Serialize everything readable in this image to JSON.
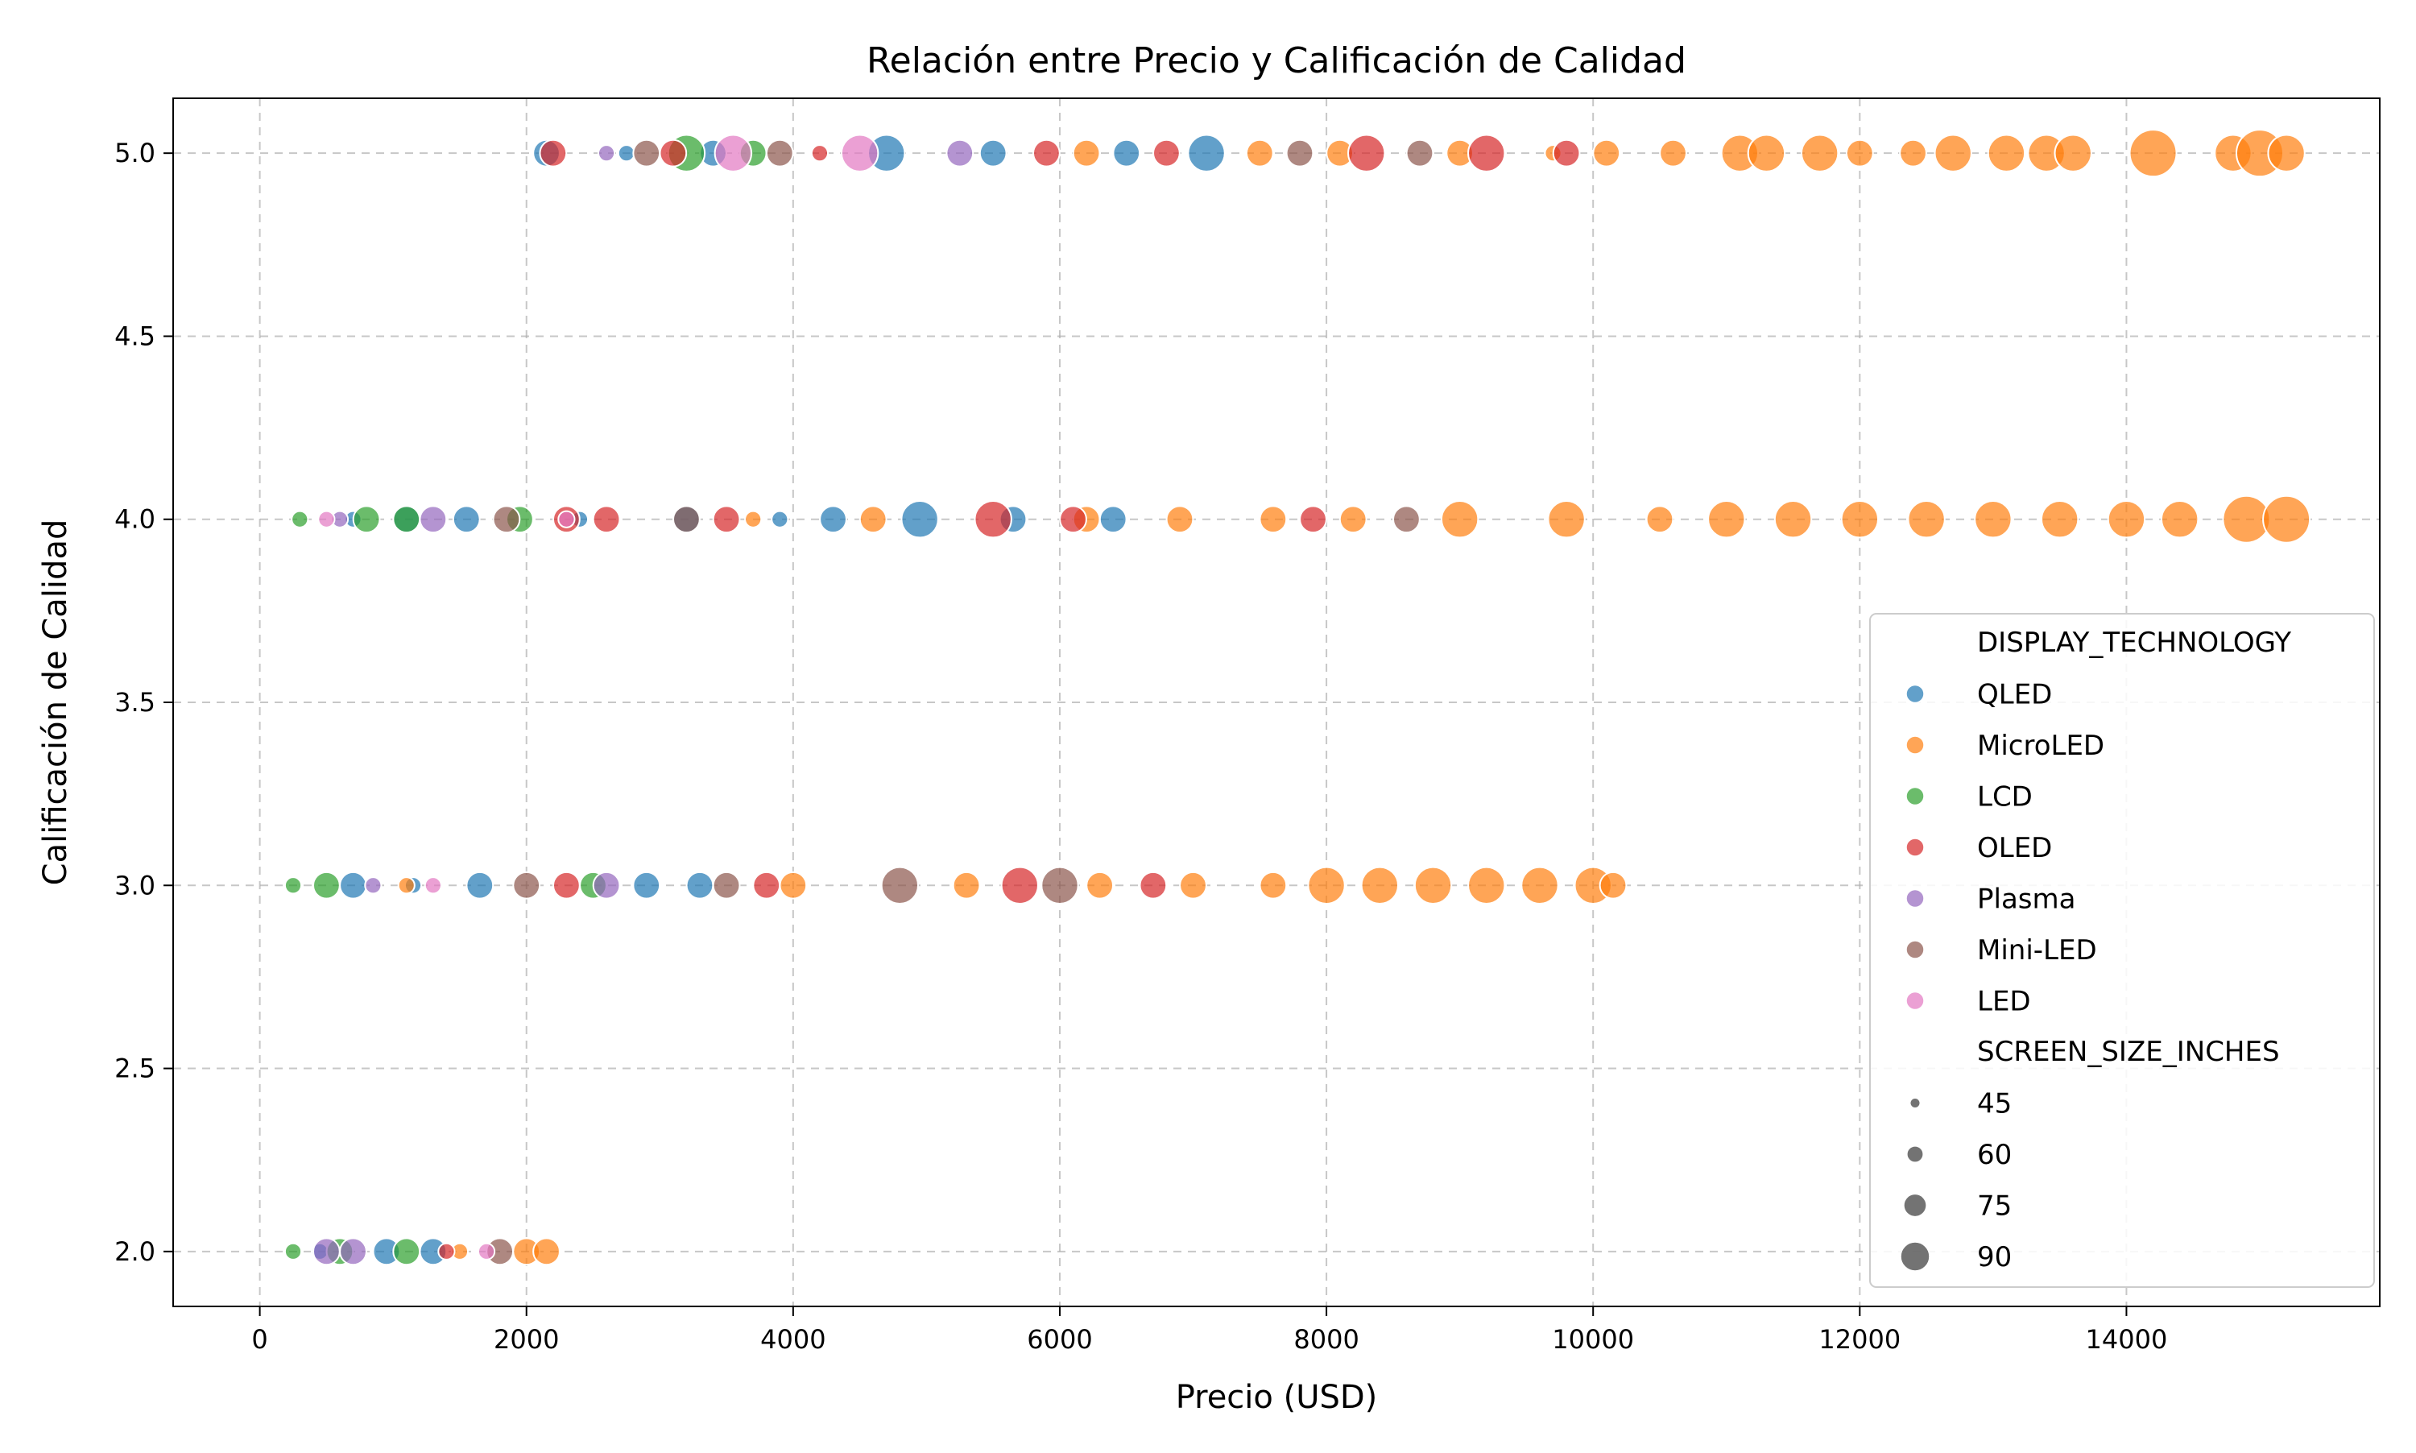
{
  "chart_data": {
    "type": "scatter",
    "title": "Relación entre Precio y Calificación de Calidad",
    "xlabel": "Precio (USD)",
    "ylabel": "Calificación de Calidad",
    "xlim": [
      -650,
      15900
    ],
    "ylim": [
      1.85,
      5.15
    ],
    "xticks": [
      0,
      2000,
      4000,
      6000,
      8000,
      10000,
      12000,
      14000
    ],
    "yticks": [
      2.0,
      2.5,
      3.0,
      3.5,
      4.0,
      4.5,
      5.0
    ],
    "xtick_labels": [
      "0",
      "2000",
      "4000",
      "6000",
      "8000",
      "10000",
      "12000",
      "14000"
    ],
    "ytick_labels": [
      "2.0",
      "2.5",
      "3.0",
      "3.5",
      "4.0",
      "4.5",
      "5.0"
    ],
    "grid": true,
    "legend_position": "right",
    "hue_title": "DISPLAY_TECHNOLOGY",
    "size_title": "SCREEN_SIZE_INCHES",
    "size_legend": [
      45,
      60,
      75,
      90
    ],
    "size_legend_labels": [
      "45",
      "60",
      "75",
      "90"
    ],
    "series": [
      {
        "name": "QLED",
        "color": "#1f77b4",
        "points": [
          {
            "x": 2150,
            "y": 5.0,
            "s": 60
          },
          {
            "x": 2750,
            "y": 5.0,
            "s": 45
          },
          {
            "x": 3400,
            "y": 5.0,
            "s": 60
          },
          {
            "x": 4700,
            "y": 5.0,
            "s": 75
          },
          {
            "x": 5500,
            "y": 5.0,
            "s": 60
          },
          {
            "x": 6500,
            "y": 5.0,
            "s": 60
          },
          {
            "x": 7100,
            "y": 5.0,
            "s": 75
          },
          {
            "x": 700,
            "y": 4.0,
            "s": 45
          },
          {
            "x": 1100,
            "y": 4.0,
            "s": 60
          },
          {
            "x": 1550,
            "y": 4.0,
            "s": 60
          },
          {
            "x": 2400,
            "y": 4.0,
            "s": 45
          },
          {
            "x": 3200,
            "y": 4.0,
            "s": 60
          },
          {
            "x": 3900,
            "y": 4.0,
            "s": 45
          },
          {
            "x": 4300,
            "y": 4.0,
            "s": 60
          },
          {
            "x": 4950,
            "y": 4.0,
            "s": 75
          },
          {
            "x": 5650,
            "y": 4.0,
            "s": 60
          },
          {
            "x": 6400,
            "y": 4.0,
            "s": 60
          },
          {
            "x": 700,
            "y": 3.0,
            "s": 60
          },
          {
            "x": 1150,
            "y": 3.0,
            "s": 45
          },
          {
            "x": 1650,
            "y": 3.0,
            "s": 60
          },
          {
            "x": 2900,
            "y": 3.0,
            "s": 60
          },
          {
            "x": 3300,
            "y": 3.0,
            "s": 60
          },
          {
            "x": 450,
            "y": 2.0,
            "s": 45
          },
          {
            "x": 950,
            "y": 2.0,
            "s": 60
          },
          {
            "x": 1300,
            "y": 2.0,
            "s": 60
          }
        ]
      },
      {
        "name": "MicroLED",
        "color": "#ff7f0e",
        "points": [
          {
            "x": 6200,
            "y": 5.0,
            "s": 60
          },
          {
            "x": 7500,
            "y": 5.0,
            "s": 60
          },
          {
            "x": 8100,
            "y": 5.0,
            "s": 60
          },
          {
            "x": 9000,
            "y": 5.0,
            "s": 60
          },
          {
            "x": 9700,
            "y": 5.0,
            "s": 45
          },
          {
            "x": 10100,
            "y": 5.0,
            "s": 60
          },
          {
            "x": 10600,
            "y": 5.0,
            "s": 60
          },
          {
            "x": 11100,
            "y": 5.0,
            "s": 75
          },
          {
            "x": 11300,
            "y": 5.0,
            "s": 75
          },
          {
            "x": 11700,
            "y": 5.0,
            "s": 75
          },
          {
            "x": 12000,
            "y": 5.0,
            "s": 60
          },
          {
            "x": 12400,
            "y": 5.0,
            "s": 60
          },
          {
            "x": 12700,
            "y": 5.0,
            "s": 75
          },
          {
            "x": 13100,
            "y": 5.0,
            "s": 75
          },
          {
            "x": 13400,
            "y": 5.0,
            "s": 75
          },
          {
            "x": 13600,
            "y": 5.0,
            "s": 75
          },
          {
            "x": 14200,
            "y": 5.0,
            "s": 90
          },
          {
            "x": 14800,
            "y": 5.0,
            "s": 75
          },
          {
            "x": 15000,
            "y": 5.0,
            "s": 90
          },
          {
            "x": 15200,
            "y": 5.0,
            "s": 75
          },
          {
            "x": 3700,
            "y": 4.0,
            "s": 45
          },
          {
            "x": 4600,
            "y": 4.0,
            "s": 60
          },
          {
            "x": 6200,
            "y": 4.0,
            "s": 60
          },
          {
            "x": 6900,
            "y": 4.0,
            "s": 60
          },
          {
            "x": 7600,
            "y": 4.0,
            "s": 60
          },
          {
            "x": 8200,
            "y": 4.0,
            "s": 60
          },
          {
            "x": 9000,
            "y": 4.0,
            "s": 75
          },
          {
            "x": 9800,
            "y": 4.0,
            "s": 75
          },
          {
            "x": 10500,
            "y": 4.0,
            "s": 60
          },
          {
            "x": 11000,
            "y": 4.0,
            "s": 75
          },
          {
            "x": 11500,
            "y": 4.0,
            "s": 75
          },
          {
            "x": 12000,
            "y": 4.0,
            "s": 75
          },
          {
            "x": 12500,
            "y": 4.0,
            "s": 75
          },
          {
            "x": 13000,
            "y": 4.0,
            "s": 75
          },
          {
            "x": 13500,
            "y": 4.0,
            "s": 75
          },
          {
            "x": 14000,
            "y": 4.0,
            "s": 75
          },
          {
            "x": 14400,
            "y": 4.0,
            "s": 75
          },
          {
            "x": 14900,
            "y": 4.0,
            "s": 90
          },
          {
            "x": 15200,
            "y": 4.0,
            "s": 90
          },
          {
            "x": 1100,
            "y": 3.0,
            "s": 45
          },
          {
            "x": 4000,
            "y": 3.0,
            "s": 60
          },
          {
            "x": 5300,
            "y": 3.0,
            "s": 60
          },
          {
            "x": 6300,
            "y": 3.0,
            "s": 60
          },
          {
            "x": 7000,
            "y": 3.0,
            "s": 60
          },
          {
            "x": 7600,
            "y": 3.0,
            "s": 60
          },
          {
            "x": 8000,
            "y": 3.0,
            "s": 75
          },
          {
            "x": 8400,
            "y": 3.0,
            "s": 75
          },
          {
            "x": 8800,
            "y": 3.0,
            "s": 75
          },
          {
            "x": 9200,
            "y": 3.0,
            "s": 75
          },
          {
            "x": 9600,
            "y": 3.0,
            "s": 75
          },
          {
            "x": 10000,
            "y": 3.0,
            "s": 75
          },
          {
            "x": 10150,
            "y": 3.0,
            "s": 60
          },
          {
            "x": 1500,
            "y": 2.0,
            "s": 45
          },
          {
            "x": 2000,
            "y": 2.0,
            "s": 60
          },
          {
            "x": 2150,
            "y": 2.0,
            "s": 60
          }
        ]
      },
      {
        "name": "LCD",
        "color": "#2ca02c",
        "points": [
          {
            "x": 3200,
            "y": 5.0,
            "s": 75
          },
          {
            "x": 3700,
            "y": 5.0,
            "s": 60
          },
          {
            "x": 300,
            "y": 4.0,
            "s": 45
          },
          {
            "x": 800,
            "y": 4.0,
            "s": 60
          },
          {
            "x": 1100,
            "y": 4.0,
            "s": 60
          },
          {
            "x": 1950,
            "y": 4.0,
            "s": 60
          },
          {
            "x": 250,
            "y": 3.0,
            "s": 45
          },
          {
            "x": 500,
            "y": 3.0,
            "s": 60
          },
          {
            "x": 2500,
            "y": 3.0,
            "s": 60
          },
          {
            "x": 250,
            "y": 2.0,
            "s": 45
          },
          {
            "x": 600,
            "y": 2.0,
            "s": 60
          },
          {
            "x": 1100,
            "y": 2.0,
            "s": 60
          }
        ]
      },
      {
        "name": "OLED",
        "color": "#d62728",
        "points": [
          {
            "x": 2200,
            "y": 5.0,
            "s": 60
          },
          {
            "x": 3100,
            "y": 5.0,
            "s": 60
          },
          {
            "x": 4200,
            "y": 5.0,
            "s": 45
          },
          {
            "x": 5900,
            "y": 5.0,
            "s": 60
          },
          {
            "x": 6800,
            "y": 5.0,
            "s": 60
          },
          {
            "x": 8300,
            "y": 5.0,
            "s": 75
          },
          {
            "x": 9200,
            "y": 5.0,
            "s": 75
          },
          {
            "x": 9800,
            "y": 5.0,
            "s": 60
          },
          {
            "x": 2300,
            "y": 4.0,
            "s": 60
          },
          {
            "x": 2600,
            "y": 4.0,
            "s": 60
          },
          {
            "x": 3500,
            "y": 4.0,
            "s": 60
          },
          {
            "x": 5500,
            "y": 4.0,
            "s": 75
          },
          {
            "x": 6100,
            "y": 4.0,
            "s": 60
          },
          {
            "x": 7900,
            "y": 4.0,
            "s": 60
          },
          {
            "x": 2300,
            "y": 3.0,
            "s": 60
          },
          {
            "x": 3800,
            "y": 3.0,
            "s": 60
          },
          {
            "x": 5700,
            "y": 3.0,
            "s": 75
          },
          {
            "x": 6700,
            "y": 3.0,
            "s": 60
          },
          {
            "x": 1400,
            "y": 2.0,
            "s": 45
          }
        ]
      },
      {
        "name": "Plasma",
        "color": "#9467bd",
        "points": [
          {
            "x": 2600,
            "y": 5.0,
            "s": 45
          },
          {
            "x": 5250,
            "y": 5.0,
            "s": 60
          },
          {
            "x": 600,
            "y": 4.0,
            "s": 45
          },
          {
            "x": 1300,
            "y": 4.0,
            "s": 60
          },
          {
            "x": 850,
            "y": 3.0,
            "s": 45
          },
          {
            "x": 2600,
            "y": 3.0,
            "s": 60
          },
          {
            "x": 500,
            "y": 2.0,
            "s": 60
          },
          {
            "x": 700,
            "y": 2.0,
            "s": 60
          }
        ]
      },
      {
        "name": "Mini-LED",
        "color": "#8c564b",
        "points": [
          {
            "x": 2900,
            "y": 5.0,
            "s": 60
          },
          {
            "x": 3900,
            "y": 5.0,
            "s": 60
          },
          {
            "x": 7800,
            "y": 5.0,
            "s": 60
          },
          {
            "x": 8700,
            "y": 5.0,
            "s": 60
          },
          {
            "x": 1850,
            "y": 4.0,
            "s": 60
          },
          {
            "x": 3200,
            "y": 4.0,
            "s": 60
          },
          {
            "x": 8600,
            "y": 4.0,
            "s": 60
          },
          {
            "x": 2000,
            "y": 3.0,
            "s": 60
          },
          {
            "x": 3500,
            "y": 3.0,
            "s": 60
          },
          {
            "x": 4800,
            "y": 3.0,
            "s": 75
          },
          {
            "x": 6000,
            "y": 3.0,
            "s": 75
          },
          {
            "x": 1800,
            "y": 2.0,
            "s": 60
          }
        ]
      },
      {
        "name": "LED",
        "color": "#e377c2",
        "points": [
          {
            "x": 4500,
            "y": 5.0,
            "s": 75
          },
          {
            "x": 3550,
            "y": 5.0,
            "s": 75
          },
          {
            "x": 500,
            "y": 4.0,
            "s": 45
          },
          {
            "x": 2300,
            "y": 4.0,
            "s": 45
          },
          {
            "x": 1300,
            "y": 3.0,
            "s": 45
          },
          {
            "x": 1700,
            "y": 2.0,
            "s": 45
          }
        ]
      }
    ]
  }
}
